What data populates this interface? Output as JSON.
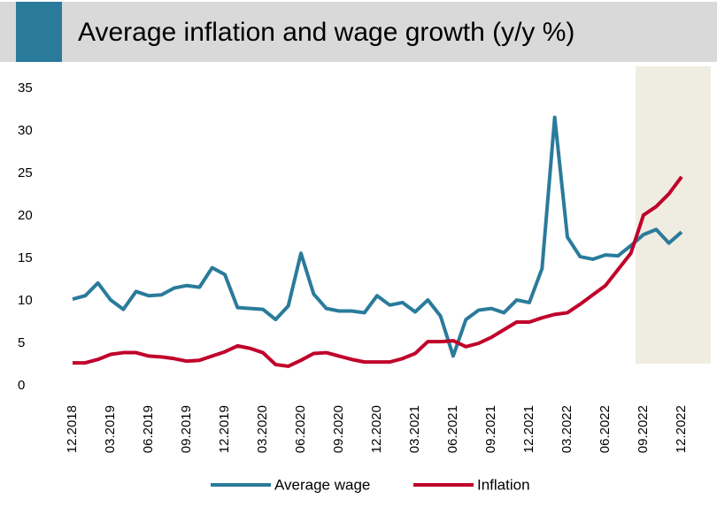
{
  "chart_data": {
    "type": "line",
    "title": "Average inflation and wage growth (y/y %)",
    "categories": [
      "12.2018",
      null,
      null,
      "03.2019",
      null,
      null,
      "06.2019",
      null,
      null,
      "09.2019",
      null,
      null,
      "12.2019",
      null,
      null,
      "03.2020",
      null,
      null,
      "06.2020",
      null,
      null,
      "09.2020",
      null,
      null,
      "12.2020",
      null,
      null,
      "03.2021",
      null,
      null,
      "06.2021",
      null,
      null,
      "09.2021",
      null,
      null,
      "12.2021",
      null,
      null,
      "03.2022",
      null,
      null,
      "06.2022",
      null,
      null,
      "09.2022",
      null,
      null,
      "12.2022"
    ],
    "series": [
      {
        "name": "Average wage",
        "color": "#2a7b9b",
        "values": [
          10.2,
          10.6,
          12.1,
          10.1,
          9.0,
          11.1,
          10.6,
          10.7,
          11.5,
          11.8,
          11.6,
          13.9,
          13.1,
          9.2,
          9.1,
          9.0,
          7.8,
          9.4,
          15.6,
          10.8,
          9.1,
          8.8,
          8.8,
          8.6,
          10.6,
          9.5,
          9.8,
          8.7,
          10.1,
          8.2,
          3.5,
          7.8,
          8.9,
          9.1,
          8.6,
          10.1,
          9.8,
          13.8,
          31.6,
          17.5,
          15.2,
          14.9,
          15.4,
          15.3,
          16.5,
          17.8,
          18.4,
          16.8,
          18.1
        ]
      },
      {
        "name": "Inflation",
        "color": "#c0002a",
        "values": [
          2.7,
          2.7,
          3.1,
          3.7,
          3.9,
          3.9,
          3.5,
          3.4,
          3.2,
          2.9,
          3.0,
          3.5,
          4.0,
          4.7,
          4.4,
          3.9,
          2.5,
          2.3,
          3.0,
          3.8,
          3.9,
          3.5,
          3.1,
          2.8,
          2.8,
          2.8,
          3.2,
          3.8,
          5.2,
          5.2,
          5.3,
          4.6,
          5.0,
          5.7,
          6.6,
          7.5,
          7.5,
          8.0,
          8.4,
          8.6,
          9.6,
          10.7,
          11.8,
          13.7,
          15.6,
          20.1,
          21.1,
          22.6,
          24.6
        ]
      }
    ],
    "ylim": [
      0,
      35
    ],
    "yticks": [
      0,
      5,
      10,
      15,
      20,
      25,
      30,
      35
    ],
    "grid": false,
    "legend": "bottom"
  }
}
